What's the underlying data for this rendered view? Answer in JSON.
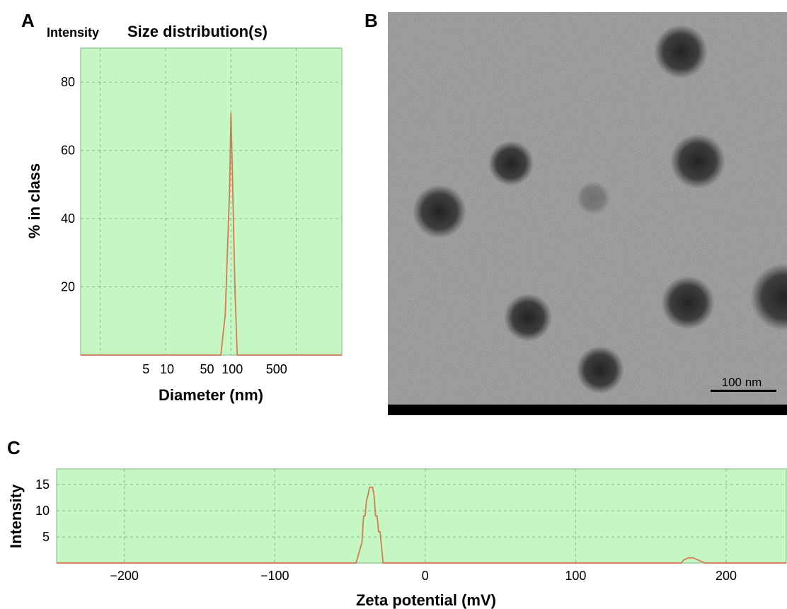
{
  "panels": {
    "a": {
      "letter": "A",
      "ylabel_top": "Intensity",
      "title": "Size distribution(s)"
    },
    "b": {
      "letter": "B",
      "scale_bar": "100 nm"
    },
    "c": {
      "letter": "C"
    }
  },
  "colors": {
    "plot_background": "#c4f7c4",
    "curve": "#d77a52"
  },
  "chart_data": [
    {
      "panel": "A",
      "type": "line",
      "title": "Size distribution(s)",
      "xlabel": "Diameter (nm)",
      "ylabel": "% in class",
      "y_caption": "Intensity",
      "x_scale": "log",
      "xlim": [
        0.5,
        5000
      ],
      "ylim": [
        0,
        90
      ],
      "xticks": [
        5,
        10,
        50,
        100,
        500
      ],
      "xtick_labels": [
        "5",
        "10",
        "50",
        "100",
        "500"
      ],
      "yticks": [
        20,
        40,
        60,
        80
      ],
      "grid": true,
      "series": [
        {
          "x": [
            0.5,
            60,
            70,
            82,
            96,
            100,
            105,
            115,
            125,
            135,
            5000
          ],
          "y": [
            0,
            0,
            0,
            12,
            50,
            71,
            55,
            20,
            0,
            0,
            0
          ]
        }
      ]
    },
    {
      "panel": "C",
      "type": "line",
      "xlabel": "Zeta potential (mV)",
      "ylabel": "Intensity",
      "xlim": [
        -245,
        240
      ],
      "ylim": [
        0,
        18
      ],
      "xticks": [
        -200,
        -100,
        0,
        100,
        200
      ],
      "xtick_labels": [
        "−200",
        "−100",
        "0",
        "100",
        "200"
      ],
      "yticks": [
        5,
        10,
        15
      ],
      "grid": true,
      "series": [
        {
          "x": [
            -245,
            -46,
            -44,
            -42,
            -41,
            -40,
            -39,
            -38,
            -37,
            -36,
            -35,
            -34,
            -33,
            -32,
            -31,
            -30,
            -29,
            -28,
            -27,
            170,
            172,
            175,
            178,
            182,
            186,
            240
          ],
          "y": [
            0,
            0,
            2,
            4,
            9,
            9,
            12,
            13,
            14.5,
            14.5,
            14.5,
            13,
            9,
            9,
            6,
            6,
            3,
            0,
            0,
            0,
            0.6,
            1,
            1,
            0.5,
            0,
            0
          ]
        }
      ]
    }
  ]
}
